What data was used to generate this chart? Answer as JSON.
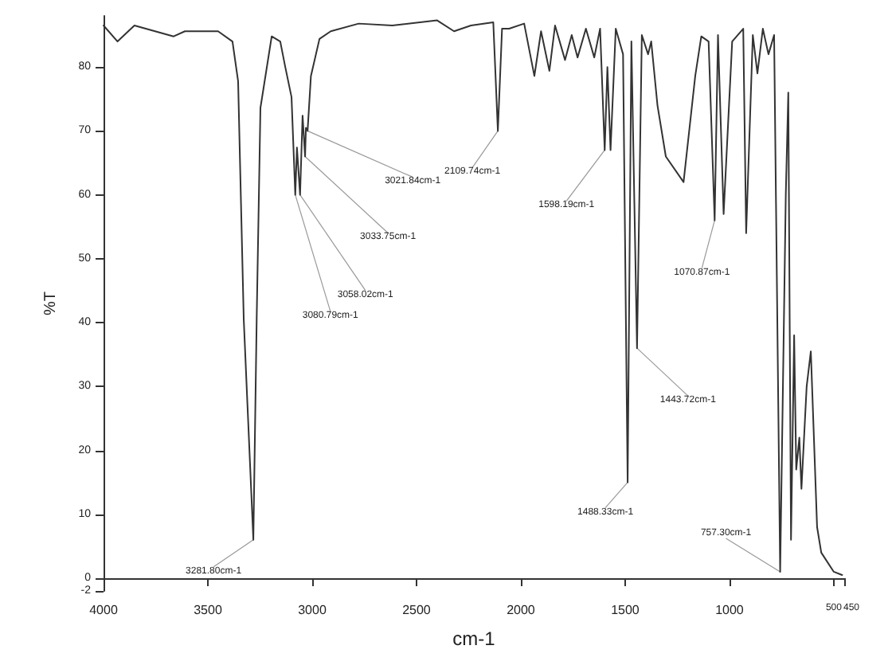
{
  "chart_data": {
    "type": "line",
    "xlabel": "cm-1",
    "ylabel": "%T",
    "xlim": [
      4000,
      450
    ],
    "xticks": [
      4000,
      3500,
      3000,
      2500,
      2000,
      1500,
      1000,
      500,
      450
    ],
    "ylim": [
      -2,
      88
    ],
    "yticks": [
      -2,
      0,
      10,
      20,
      30,
      40,
      50,
      60,
      70,
      80
    ],
    "grid": false,
    "marker": "none",
    "line_style": "solid",
    "series": [
      {
        "color": "#333333",
        "x": [
          4000,
          3933,
          3852,
          3664,
          3610,
          3451,
          3382,
          3355,
          3328,
          3282,
          3266,
          3248,
          3194,
          3153,
          3129,
          3099,
          3081,
          3073,
          3058,
          3046,
          3034,
          3030,
          3022,
          3006,
          2965,
          2911,
          2777,
          2616,
          2401,
          2320,
          2239,
          2132,
          2110,
          2090,
          2056,
          1984,
          1935,
          1903,
          1863,
          1836,
          1788,
          1756,
          1728,
          1688,
          1648,
          1620,
          1598,
          1585,
          1570,
          1545,
          1510,
          1488,
          1470,
          1443,
          1420,
          1390,
          1375,
          1345,
          1305,
          1220,
          1164,
          1135,
          1100,
          1071,
          1055,
          1028,
          987,
          934,
          920,
          888,
          866,
          840,
          813,
          786,
          757,
          730,
          718,
          705,
          690,
          680,
          665,
          655,
          630,
          610,
          580,
          560,
          500,
          460
        ],
        "values": [
          86.5,
          84,
          86.5,
          84.8,
          85.6,
          85.6,
          84,
          77.8,
          40.5,
          6,
          40.5,
          73.6,
          84.8,
          84,
          80,
          75.3,
          60,
          67.4,
          60,
          72.4,
          66,
          70.5,
          70,
          78.6,
          84.4,
          85.6,
          86.8,
          86.5,
          87.3,
          85.6,
          86.5,
          87,
          70,
          86,
          86,
          86.8,
          78.6,
          85.6,
          79.4,
          86.5,
          81.1,
          85,
          81.5,
          86,
          81.5,
          86,
          67,
          80,
          67,
          86,
          82,
          15,
          84,
          36,
          85,
          82,
          84,
          74,
          66,
          62,
          78.6,
          84.8,
          84,
          56,
          85,
          57,
          84,
          86,
          54,
          85,
          79,
          86,
          82,
          85,
          1,
          60,
          76,
          6,
          38,
          17,
          22,
          14,
          30,
          35.5,
          8,
          4,
          1,
          0.5
        ]
      }
    ],
    "annotations": [
      {
        "text": "3281.80cm-1",
        "x": 3282,
        "y": 6
      },
      {
        "text": "3080.79cm-1",
        "x": 3081,
        "y": 60
      },
      {
        "text": "3058.02cm-1",
        "x": 3058,
        "y": 60
      },
      {
        "text": "3033.75cm-1",
        "x": 3034,
        "y": 66
      },
      {
        "text": "3021.84cm-1",
        "x": 3022,
        "y": 70
      },
      {
        "text": "2109.74cm-1",
        "x": 2110,
        "y": 70
      },
      {
        "text": "1598.19cm-1",
        "x": 1598,
        "y": 67
      },
      {
        "text": "1070.87cm-1",
        "x": 1071,
        "y": 56
      },
      {
        "text": "1443.72cm-1",
        "x": 1443,
        "y": 36
      },
      {
        "text": "1488.33cm-1",
        "x": 1488,
        "y": 15
      },
      {
        "text": "757.30cm-1",
        "x": 757,
        "y": 1
      }
    ]
  }
}
